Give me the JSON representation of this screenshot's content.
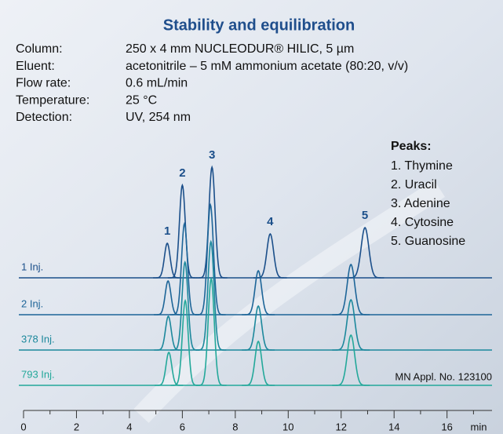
{
  "chart_data": {
    "type": "chromatogram",
    "title": "Stability and equilibration",
    "conditions": [
      {
        "label": "Column:",
        "value": "250 x 4 mm NUCLEODUR® HILIC, 5 µm"
      },
      {
        "label": "Eluent:",
        "value": "acetonitrile – 5 mM ammonium acetate (80:20, v/v)"
      },
      {
        "label": "Flow rate:",
        "value": "0.6 mL/min"
      },
      {
        "label": "Temperature:",
        "value": "25 °C"
      },
      {
        "label": "Detection:",
        "value": "UV, 254 nm"
      }
    ],
    "peaks_title": "Peaks:",
    "peaks": [
      "1. Thymine",
      "2. Uracil",
      "3. Adenine",
      "4. Cytosine",
      "5. Guanosine"
    ],
    "peak_numbers": [
      "1",
      "2",
      "3",
      "4",
      "5"
    ],
    "series": [
      {
        "name": "1 Inj.",
        "color": "#1b4f8a",
        "retention_times": [
          5.43,
          6.0,
          7.12,
          9.32,
          12.9
        ],
        "heights": [
          44,
          118,
          141,
          56,
          64
        ]
      },
      {
        "name": "2 Inj.",
        "color": "#1d6598",
        "retention_times": [
          5.46,
          6.08,
          7.06,
          8.87,
          12.37
        ],
        "heights": [
          43,
          116,
          140,
          56,
          64
        ]
      },
      {
        "name": "378 Inj.",
        "color": "#1c889c",
        "retention_times": [
          5.47,
          6.1,
          7.08,
          8.87,
          12.37
        ],
        "heights": [
          43,
          112,
          138,
          56,
          64
        ]
      },
      {
        "name": "793 Inj.",
        "color": "#23a89a",
        "retention_times": [
          5.49,
          6.11,
          7.09,
          8.87,
          12.37
        ],
        "heights": [
          42,
          108,
          136,
          56,
          64
        ]
      }
    ],
    "note": "MN Appl. No. 123100",
    "x_label": "min",
    "xlim": [
      0,
      17.7
    ],
    "xticks": [
      0,
      2,
      4,
      6,
      8,
      10,
      12,
      14,
      16
    ],
    "xticks_minor": [
      1,
      3,
      5,
      7,
      9,
      11,
      13,
      15,
      17
    ]
  }
}
